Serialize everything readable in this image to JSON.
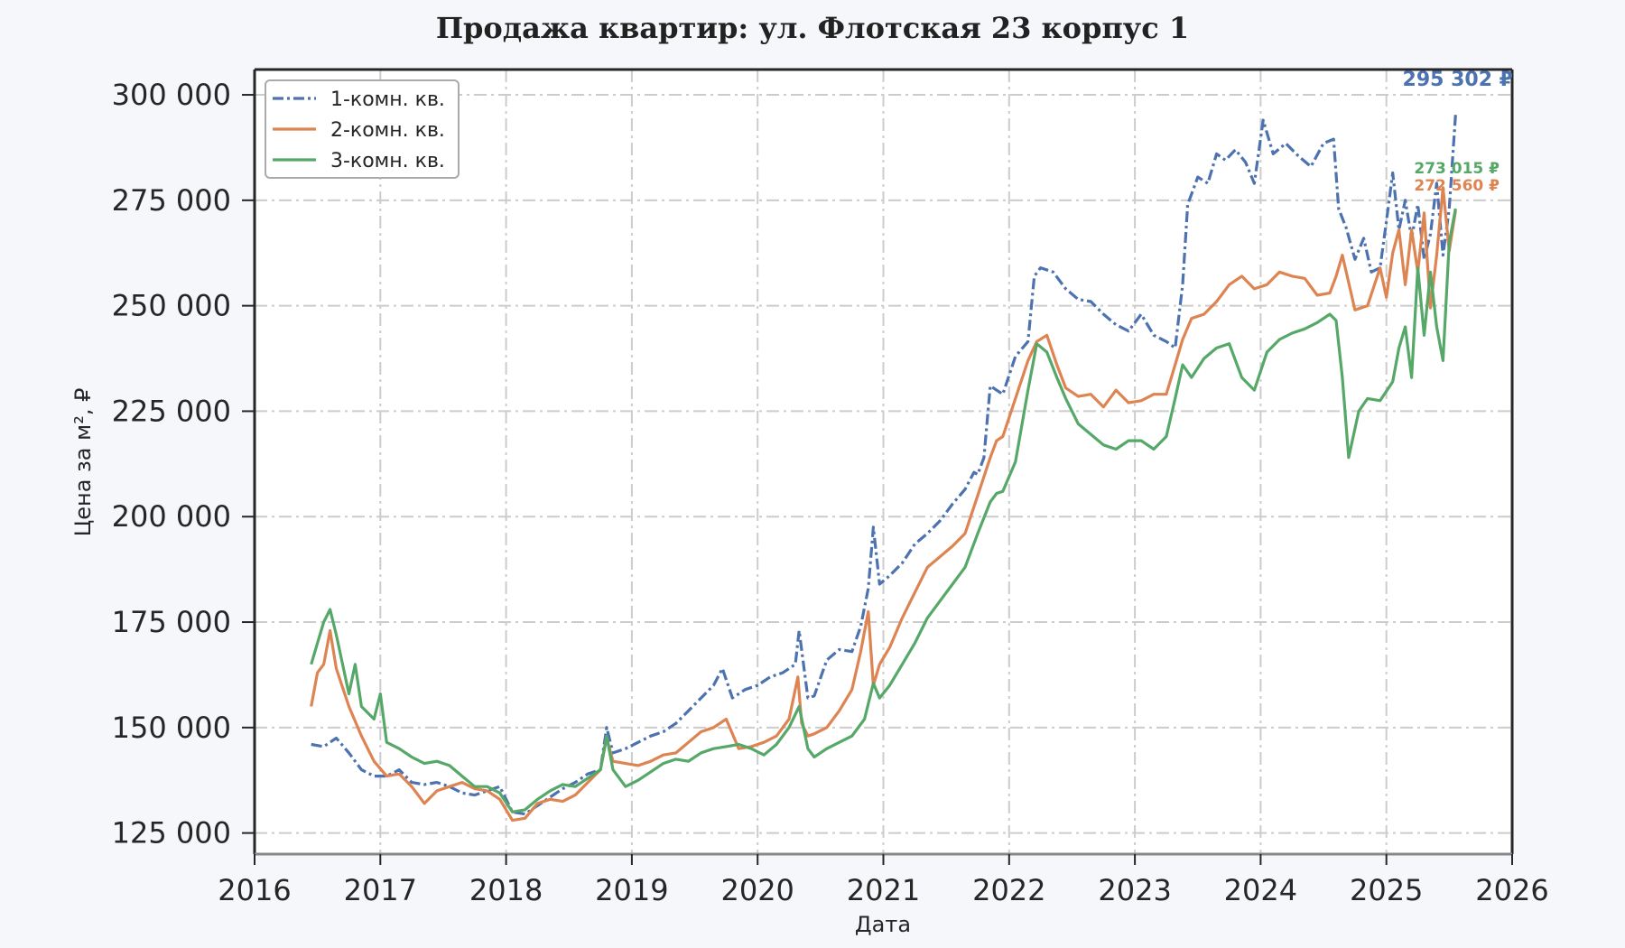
{
  "chart_data": {
    "type": "line",
    "title": "Продажа квартир: ул. Флотская 23 корпус 1",
    "xlabel": "Дата",
    "ylabel": "Цена за м², ₽",
    "xlim": [
      2016,
      2026
    ],
    "ylim": [
      120000,
      306000
    ],
    "x_ticks": [
      "2016",
      "2017",
      "2018",
      "2019",
      "2020",
      "2021",
      "2022",
      "2023",
      "2024",
      "2025",
      "2026"
    ],
    "y_ticks": [
      "125 000",
      "150 000",
      "175 000",
      "200 000",
      "225 000",
      "250 000",
      "275 000",
      "300 000"
    ],
    "grid": true,
    "legend_position": "top-left",
    "series": [
      {
        "name": "1-комн. кв.",
        "color": "#4c72b0",
        "dash": "dashdot",
        "end_label": "295 302 ₽",
        "x": [
          2016.45,
          2016.55,
          2016.65,
          2016.75,
          2016.85,
          2016.95,
          2017.05,
          2017.15,
          2017.25,
          2017.35,
          2017.45,
          2017.55,
          2017.65,
          2017.75,
          2017.85,
          2017.95,
          2018.05,
          2018.15,
          2018.25,
          2018.35,
          2018.45,
          2018.55,
          2018.65,
          2018.75,
          2018.8,
          2018.85,
          2018.95,
          2019.05,
          2019.15,
          2019.25,
          2019.35,
          2019.45,
          2019.55,
          2019.65,
          2019.72,
          2019.8,
          2019.9,
          2020.0,
          2020.1,
          2020.2,
          2020.3,
          2020.33,
          2020.4,
          2020.45,
          2020.55,
          2020.65,
          2020.75,
          2020.82,
          2020.88,
          2020.92,
          2020.97,
          2021.05,
          2021.15,
          2021.25,
          2021.35,
          2021.45,
          2021.55,
          2021.65,
          2021.72,
          2021.75,
          2021.8,
          2021.85,
          2021.95,
          2022.05,
          2022.15,
          2022.2,
          2022.25,
          2022.35,
          2022.45,
          2022.55,
          2022.65,
          2022.75,
          2022.85,
          2022.95,
          2023.05,
          2023.15,
          2023.25,
          2023.32,
          2023.38,
          2023.42,
          2023.5,
          2023.58,
          2023.65,
          2023.72,
          2023.8,
          2023.88,
          2023.95,
          2024.02,
          2024.1,
          2024.2,
          2024.3,
          2024.4,
          2024.5,
          2024.58,
          2024.62,
          2024.68,
          2024.75,
          2024.82,
          2024.88,
          2024.95,
          2025.0,
          2025.05,
          2025.1,
          2025.15,
          2025.2,
          2025.25,
          2025.3,
          2025.35,
          2025.4,
          2025.45,
          2025.5,
          2025.55
        ],
        "y": [
          146000,
          145500,
          147500,
          144000,
          140000,
          138500,
          138500,
          140000,
          137000,
          136500,
          137000,
          136000,
          134500,
          134000,
          135000,
          136000,
          130000,
          129500,
          131500,
          133500,
          135500,
          137000,
          139000,
          140000,
          150000,
          144000,
          145000,
          146500,
          148000,
          149000,
          151000,
          154000,
          157000,
          160000,
          164000,
          157000,
          159000,
          160000,
          162000,
          163000,
          165000,
          173000,
          157000,
          157500,
          166000,
          168500,
          168000,
          174000,
          183000,
          197500,
          184000,
          186000,
          189000,
          193500,
          196000,
          199000,
          203000,
          206500,
          210500,
          210000,
          214000,
          231000,
          229000,
          238000,
          241500,
          257000,
          259000,
          258000,
          254000,
          251500,
          251000,
          248000,
          245500,
          244000,
          248000,
          243000,
          241500,
          240000,
          255000,
          274000,
          280500,
          279000,
          286000,
          284500,
          287000,
          284000,
          279000,
          294000,
          286000,
          288500,
          285500,
          283000,
          288500,
          289500,
          273000,
          268500,
          261000,
          266000,
          258000,
          259000,
          270000,
          281500,
          268000,
          275000,
          266000,
          274000,
          261000,
          267000,
          279000,
          262000,
          273000,
          295300
        ]
      },
      {
        "name": "2-комн. кв.",
        "color": "#dd8452",
        "dash": "solid",
        "end_label": "272 560 ₽",
        "x": [
          2016.45,
          2016.5,
          2016.55,
          2016.6,
          2016.65,
          2016.75,
          2016.85,
          2016.95,
          2017.05,
          2017.15,
          2017.25,
          2017.35,
          2017.45,
          2017.55,
          2017.65,
          2017.75,
          2017.85,
          2017.95,
          2018.05,
          2018.15,
          2018.25,
          2018.35,
          2018.45,
          2018.55,
          2018.65,
          2018.75,
          2018.8,
          2018.85,
          2018.95,
          2019.05,
          2019.15,
          2019.25,
          2019.35,
          2019.45,
          2019.55,
          2019.65,
          2019.75,
          2019.85,
          2019.95,
          2020.05,
          2020.15,
          2020.25,
          2020.32,
          2020.35,
          2020.4,
          2020.45,
          2020.55,
          2020.65,
          2020.75,
          2020.82,
          2020.88,
          2020.92,
          2020.97,
          2021.05,
          2021.15,
          2021.25,
          2021.35,
          2021.45,
          2021.55,
          2021.65,
          2021.75,
          2021.85,
          2021.9,
          2021.95,
          2022.05,
          2022.15,
          2022.22,
          2022.3,
          2022.38,
          2022.45,
          2022.55,
          2022.65,
          2022.75,
          2022.85,
          2022.95,
          2023.05,
          2023.15,
          2023.25,
          2023.32,
          2023.38,
          2023.45,
          2023.55,
          2023.65,
          2023.75,
          2023.85,
          2023.95,
          2024.05,
          2024.15,
          2024.25,
          2024.35,
          2024.45,
          2024.55,
          2024.6,
          2024.65,
          2024.75,
          2024.85,
          2024.95,
          2025.0,
          2025.05,
          2025.1,
          2025.15,
          2025.2,
          2025.25,
          2025.3,
          2025.35,
          2025.4,
          2025.45,
          2025.5,
          2025.55
        ],
        "y": [
          155000,
          163000,
          165000,
          173000,
          164000,
          155000,
          148000,
          142000,
          138500,
          139000,
          136000,
          132000,
          135000,
          136000,
          137000,
          135500,
          135000,
          133000,
          128000,
          128500,
          132000,
          133000,
          132500,
          134000,
          137000,
          140000,
          147500,
          142000,
          141500,
          141000,
          142000,
          143500,
          144000,
          146500,
          149000,
          150000,
          152000,
          145000,
          145500,
          146500,
          148000,
          152000,
          162000,
          151000,
          148000,
          148500,
          150000,
          154000,
          159000,
          168000,
          177500,
          160000,
          165000,
          169000,
          176000,
          182000,
          188000,
          190500,
          193000,
          196000,
          205000,
          214000,
          218000,
          219000,
          228000,
          237000,
          241500,
          243000,
          236000,
          230500,
          228500,
          229000,
          226000,
          230000,
          227000,
          227500,
          229000,
          229000,
          236000,
          242000,
          247000,
          248000,
          251000,
          255000,
          257000,
          254000,
          255000,
          258000,
          257000,
          256500,
          252500,
          253000,
          257000,
          262000,
          249000,
          250000,
          259000,
          252000,
          262500,
          268000,
          255000,
          268000,
          258000,
          272000,
          249500,
          262000,
          278000,
          263000,
          272560
        ]
      },
      {
        "name": "3-комн. кв.",
        "color": "#55a868",
        "dash": "solid",
        "end_label": "273 015 ₽",
        "x": [
          2016.45,
          2016.5,
          2016.55,
          2016.6,
          2016.65,
          2016.75,
          2016.8,
          2016.85,
          2016.95,
          2017.0,
          2017.05,
          2017.15,
          2017.25,
          2017.35,
          2017.45,
          2017.55,
          2017.65,
          2017.75,
          2017.85,
          2017.95,
          2018.05,
          2018.15,
          2018.25,
          2018.35,
          2018.45,
          2018.55,
          2018.65,
          2018.75,
          2018.8,
          2018.85,
          2018.95,
          2019.05,
          2019.15,
          2019.25,
          2019.35,
          2019.45,
          2019.55,
          2019.65,
          2019.75,
          2019.85,
          2019.95,
          2020.05,
          2020.15,
          2020.25,
          2020.33,
          2020.4,
          2020.45,
          2020.55,
          2020.65,
          2020.75,
          2020.85,
          2020.92,
          2020.97,
          2021.05,
          2021.15,
          2021.25,
          2021.35,
          2021.45,
          2021.55,
          2021.65,
          2021.75,
          2021.85,
          2021.9,
          2021.95,
          2022.05,
          2022.15,
          2022.22,
          2022.3,
          2022.38,
          2022.45,
          2022.55,
          2022.65,
          2022.75,
          2022.85,
          2022.95,
          2023.05,
          2023.15,
          2023.25,
          2023.32,
          2023.38,
          2023.45,
          2023.55,
          2023.65,
          2023.75,
          2023.85,
          2023.95,
          2024.05,
          2024.15,
          2024.25,
          2024.35,
          2024.45,
          2024.55,
          2024.6,
          2024.65,
          2024.7,
          2024.78,
          2024.85,
          2024.95,
          2025.05,
          2025.1,
          2025.15,
          2025.2,
          2025.25,
          2025.3,
          2025.35,
          2025.4,
          2025.45,
          2025.5,
          2025.55
        ],
        "y": [
          165000,
          170000,
          175000,
          178000,
          172000,
          158000,
          165000,
          155000,
          152000,
          158000,
          146500,
          145000,
          143000,
          141500,
          142000,
          141000,
          138500,
          136000,
          136000,
          134500,
          130000,
          130500,
          133000,
          135000,
          136500,
          136000,
          138000,
          140000,
          148000,
          140000,
          136000,
          137500,
          139500,
          141500,
          142500,
          142000,
          144000,
          145000,
          145500,
          146000,
          145000,
          143500,
          146000,
          150000,
          155000,
          145000,
          143000,
          145000,
          146500,
          148000,
          152000,
          160500,
          157000,
          160000,
          165000,
          170000,
          176000,
          180000,
          184000,
          188000,
          196000,
          203500,
          205500,
          206000,
          213000,
          230000,
          241000,
          239000,
          233000,
          228000,
          222000,
          219500,
          217000,
          216000,
          218000,
          218000,
          216000,
          219000,
          228000,
          236000,
          233000,
          237500,
          240000,
          241000,
          233000,
          230000,
          239000,
          242000,
          243500,
          244500,
          246000,
          248000,
          246500,
          233000,
          214000,
          225000,
          228000,
          227500,
          232000,
          240000,
          245000,
          233000,
          259000,
          243000,
          258000,
          245000,
          237000,
          265000,
          273015
        ]
      }
    ]
  }
}
